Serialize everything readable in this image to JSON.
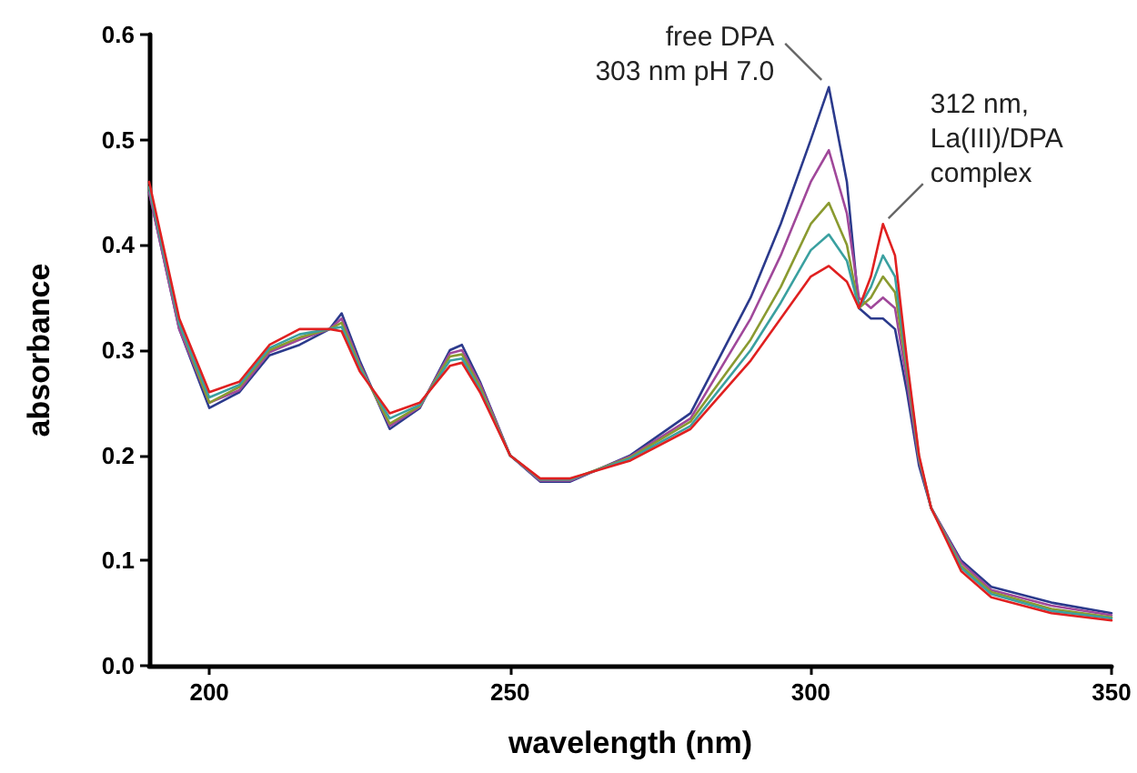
{
  "chart_data": {
    "type": "line",
    "xlabel": "wavelength (nm)",
    "ylabel": "absorbance",
    "x": [
      190,
      195,
      200,
      205,
      210,
      215,
      220,
      222,
      225,
      230,
      235,
      240,
      242,
      245,
      250,
      255,
      260,
      270,
      280,
      290,
      295,
      300,
      303,
      306,
      308,
      310,
      312,
      314,
      316,
      318,
      320,
      325,
      330,
      340,
      350
    ],
    "series": [
      {
        "color": "#2b3a8c",
        "values": [
          0.45,
          0.32,
          0.245,
          0.26,
          0.295,
          0.305,
          0.32,
          0.335,
          0.29,
          0.225,
          0.245,
          0.3,
          0.305,
          0.27,
          0.2,
          0.175,
          0.175,
          0.2,
          0.24,
          0.35,
          0.42,
          0.5,
          0.55,
          0.46,
          0.34,
          0.33,
          0.33,
          0.32,
          0.26,
          0.19,
          0.15,
          0.1,
          0.075,
          0.06,
          0.05
        ]
      },
      {
        "color": "#a0489a",
        "values": [
          0.45,
          0.32,
          0.25,
          0.262,
          0.298,
          0.31,
          0.32,
          0.33,
          0.287,
          0.228,
          0.246,
          0.297,
          0.3,
          0.268,
          0.2,
          0.176,
          0.176,
          0.199,
          0.235,
          0.33,
          0.39,
          0.46,
          0.49,
          0.43,
          0.35,
          0.34,
          0.35,
          0.34,
          0.27,
          0.195,
          0.15,
          0.098,
          0.072,
          0.057,
          0.048
        ]
      },
      {
        "color": "#8a9a30",
        "values": [
          0.455,
          0.325,
          0.25,
          0.265,
          0.3,
          0.312,
          0.32,
          0.326,
          0.285,
          0.23,
          0.247,
          0.294,
          0.296,
          0.265,
          0.2,
          0.177,
          0.177,
          0.198,
          0.232,
          0.31,
          0.36,
          0.42,
          0.44,
          0.4,
          0.34,
          0.35,
          0.37,
          0.355,
          0.28,
          0.197,
          0.15,
          0.095,
          0.07,
          0.054,
          0.046
        ]
      },
      {
        "color": "#3aa0a0",
        "values": [
          0.455,
          0.325,
          0.255,
          0.267,
          0.302,
          0.315,
          0.32,
          0.322,
          0.283,
          0.235,
          0.248,
          0.29,
          0.292,
          0.262,
          0.2,
          0.177,
          0.177,
          0.197,
          0.228,
          0.3,
          0.345,
          0.395,
          0.41,
          0.385,
          0.34,
          0.36,
          0.39,
          0.37,
          0.285,
          0.198,
          0.15,
          0.093,
          0.068,
          0.052,
          0.045
        ]
      },
      {
        "color": "#e02020",
        "values": [
          0.46,
          0.33,
          0.26,
          0.27,
          0.305,
          0.32,
          0.32,
          0.318,
          0.28,
          0.24,
          0.25,
          0.285,
          0.288,
          0.26,
          0.2,
          0.178,
          0.178,
          0.195,
          0.225,
          0.29,
          0.33,
          0.37,
          0.38,
          0.365,
          0.34,
          0.37,
          0.42,
          0.39,
          0.29,
          0.2,
          0.15,
          0.09,
          0.065,
          0.05,
          0.043
        ]
      }
    ],
    "xlim": [
      190,
      350
    ],
    "xticks": [
      200,
      250,
      300,
      350
    ],
    "ylim": [
      0,
      0.6
    ],
    "yticks": [
      {
        "value": 0,
        "label": "0.0"
      },
      {
        "value": 0.1,
        "label": "0.1"
      },
      {
        "value": 0.2,
        "label": "0.2"
      },
      {
        "value": 0.3,
        "label": "0.3"
      },
      {
        "value": 0.4,
        "label": "0.4"
      },
      {
        "value": 0.5,
        "label": "0.5"
      },
      {
        "value": 0.6,
        "label": "0.6"
      }
    ],
    "annotations": [
      {
        "text": "free DPA\n303 nm pH 7.0",
        "x": 303,
        "y": 0.55
      },
      {
        "text": "312 nm,\nLa(III)/DPA\ncomplex",
        "x": 312,
        "y": 0.42
      }
    ],
    "grid": false,
    "marker": "none",
    "line_style": "solid"
  }
}
